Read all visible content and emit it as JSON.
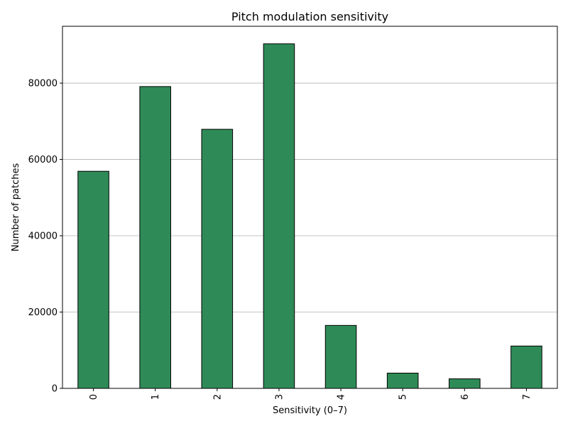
{
  "chart_data": {
    "type": "bar",
    "title": "Pitch modulation sensitivity",
    "xlabel": "Sensitivity (0–7)",
    "ylabel": "Number of patches",
    "categories": [
      "0",
      "1",
      "2",
      "3",
      "4",
      "5",
      "6",
      "7"
    ],
    "values": [
      56900,
      79100,
      67900,
      90300,
      16500,
      4000,
      2500,
      11100
    ],
    "ylim": [
      0,
      94900
    ],
    "yticks": [
      0,
      20000,
      40000,
      60000,
      80000
    ],
    "grid": "y-major",
    "bar_color": "#2e8b57",
    "xtick_rotation": "vertical",
    "legend": "none"
  }
}
